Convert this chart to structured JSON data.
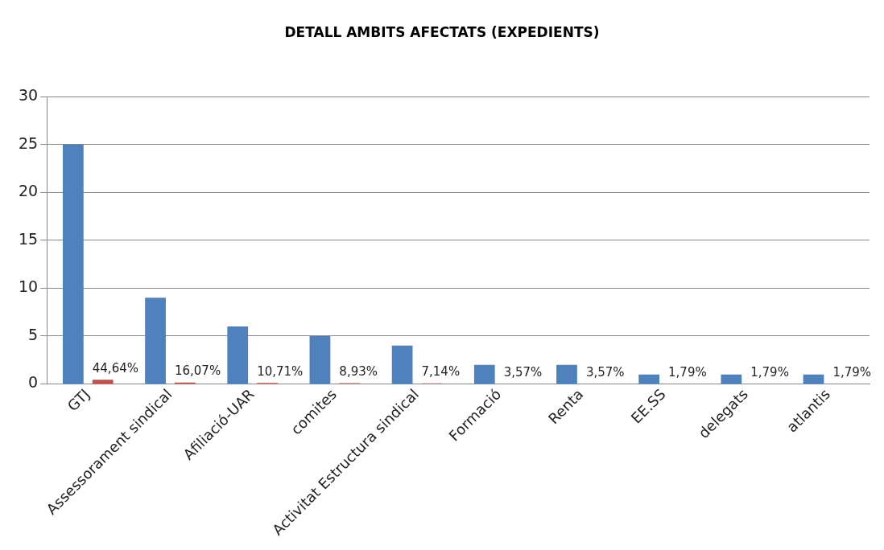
{
  "chart_data": {
    "type": "bar",
    "title": "DETALL AMBITS AFECTATS (EXPEDIENTS)",
    "categories": [
      "GTJ",
      "Assessorament sindical",
      "Afiliació-UAR",
      "comites",
      "Activitat Estructura sindical",
      "Formació",
      "Renta",
      "EE.SS",
      "delegats",
      "atlantis"
    ],
    "series": [
      {
        "color": "#4f81bd",
        "values": [
          25,
          9,
          6,
          5,
          4,
          2,
          2,
          1,
          1,
          1
        ]
      },
      {
        "color": "#c0504d",
        "values": [
          0.4464,
          0.1607,
          0.1071,
          0.0893,
          0.0714,
          0.0357,
          0.0357,
          0.0179,
          0.0179,
          0.0179
        ],
        "value_labels": [
          "44,64%",
          "16,07%",
          "10,71%",
          "8,93%",
          "7,14%",
          "3,57%",
          "3,57%",
          "1,79%",
          "1,79%",
          "1,79%"
        ]
      }
    ],
    "ylim": [
      0,
      30
    ],
    "yticks": [
      0,
      5,
      10,
      15,
      20,
      25,
      30
    ],
    "grid": "y",
    "legend": false
  }
}
